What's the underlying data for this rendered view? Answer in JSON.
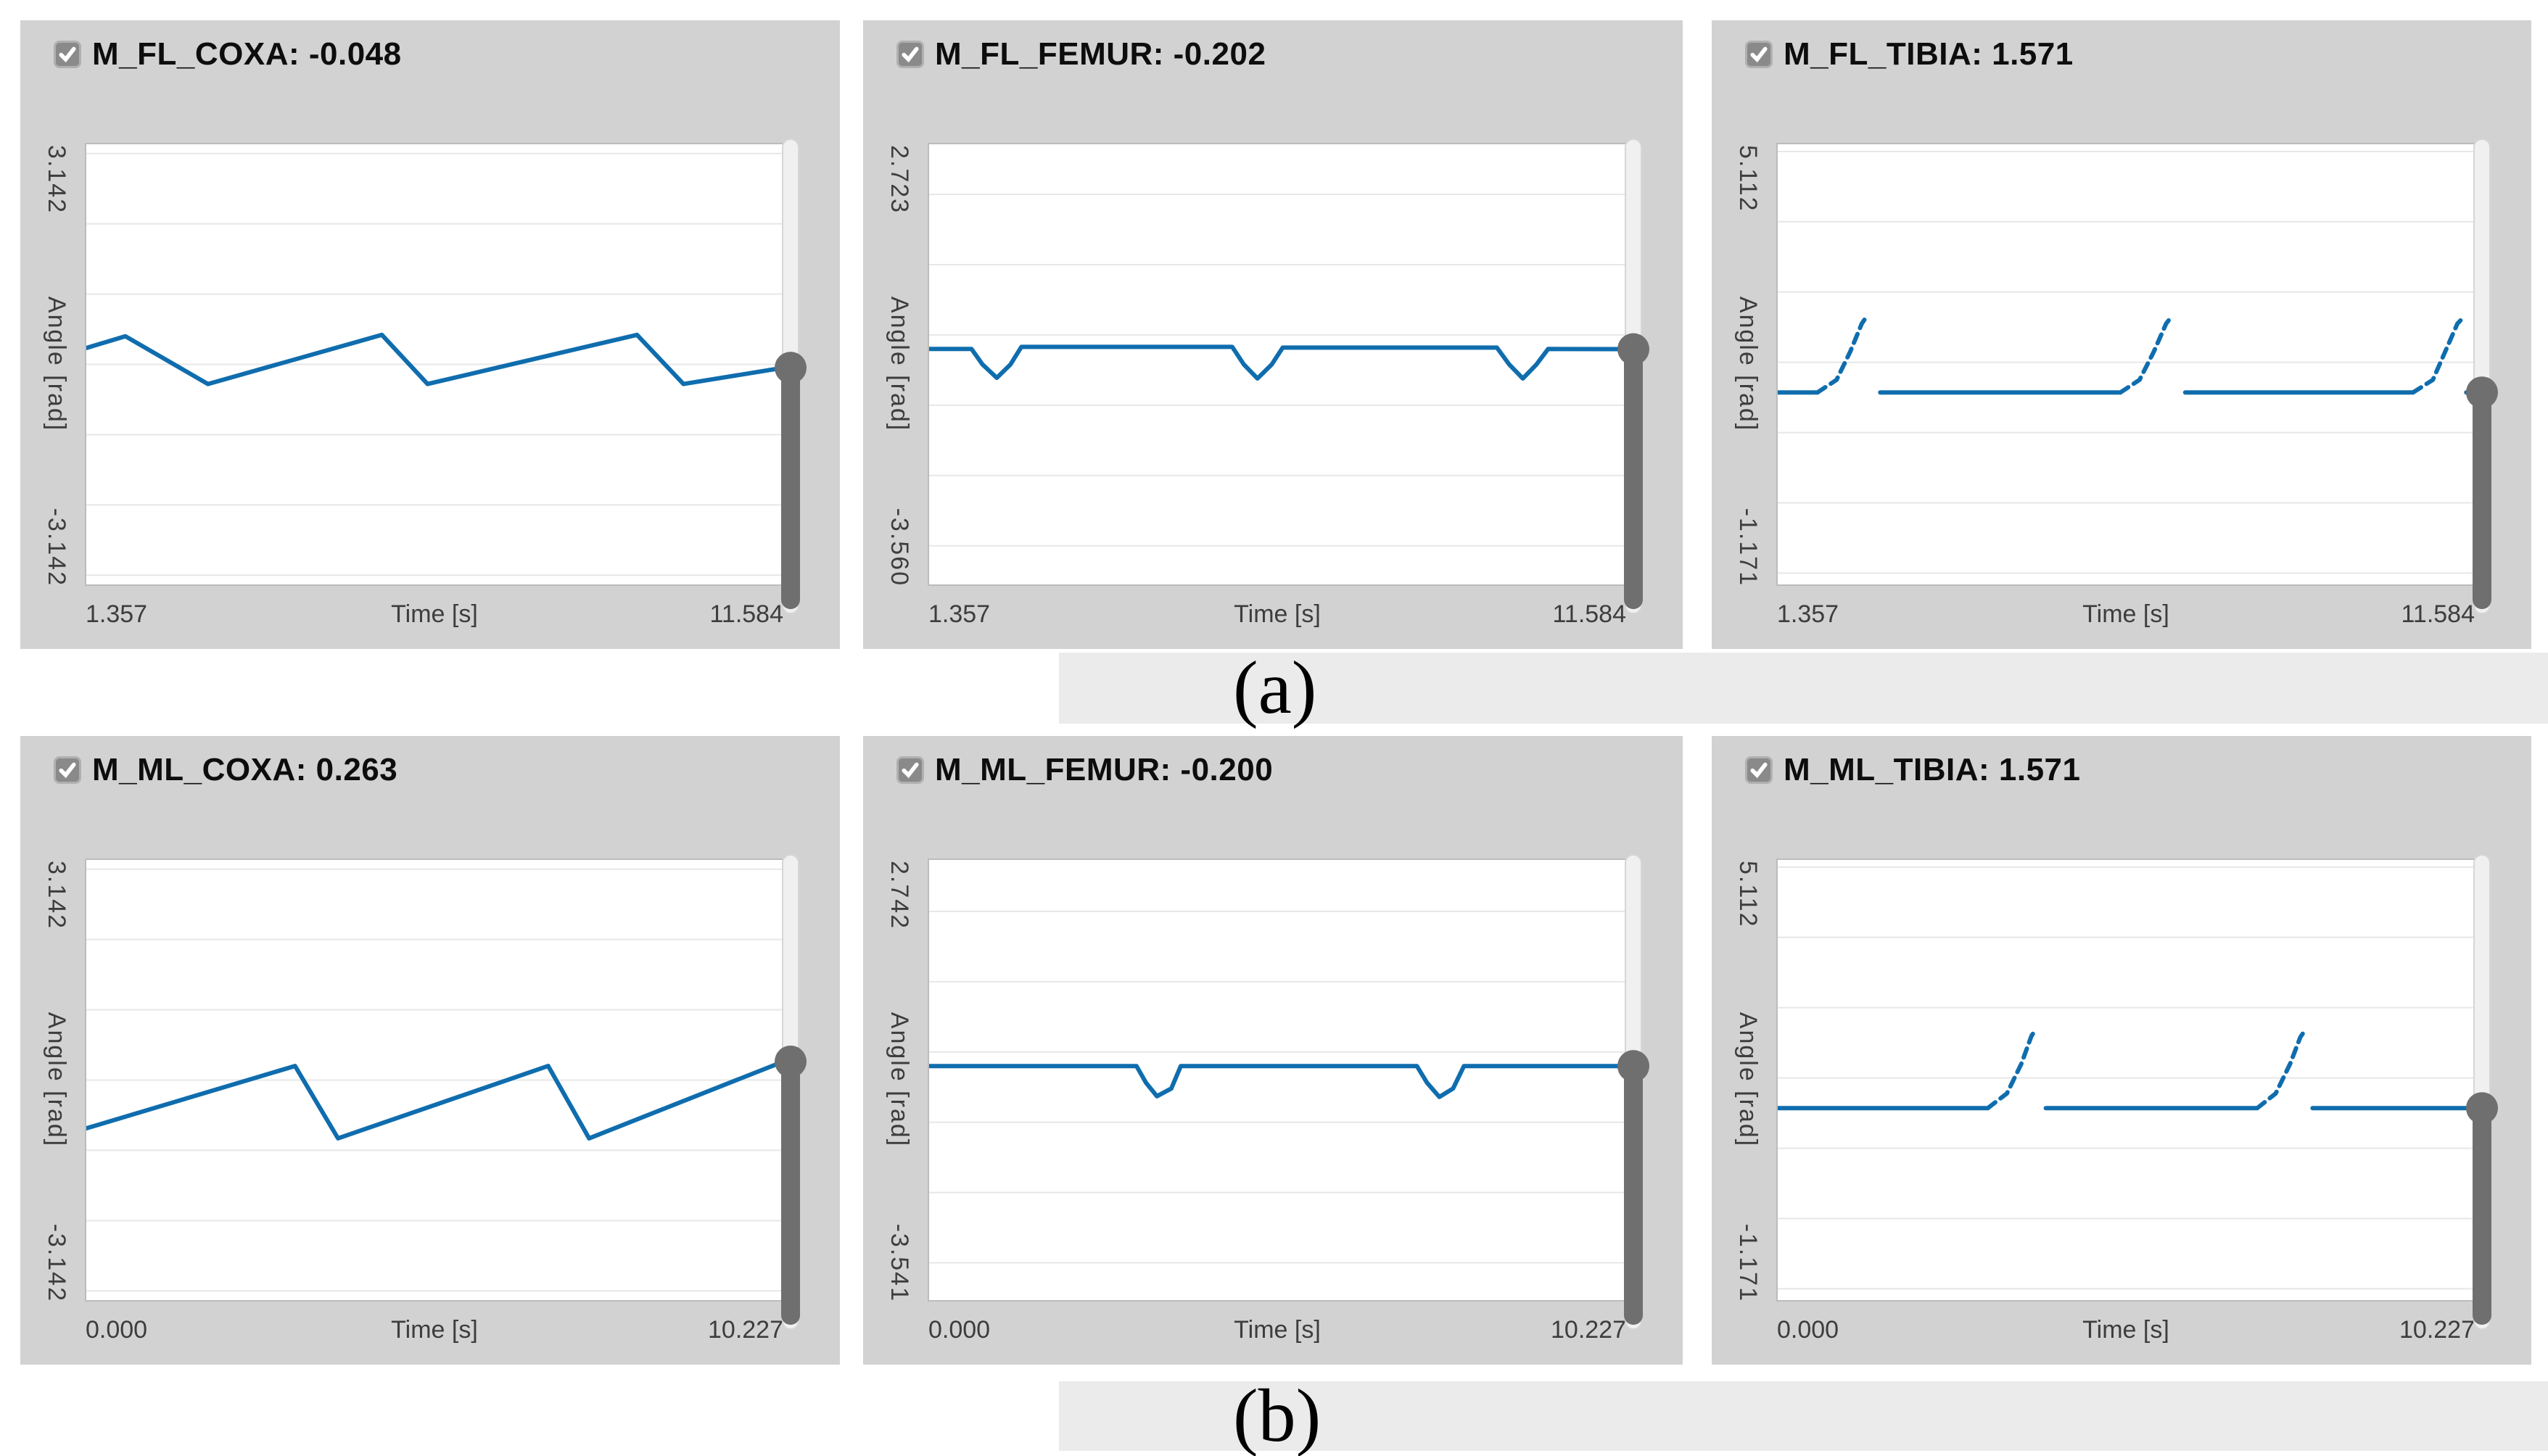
{
  "colors": {
    "page_bg": "#ffffff",
    "panel_bg": "#d2d2d2",
    "band_bg": "#ebebeb",
    "plot_bg": "#ffffff",
    "plot_border": "#bcbcbc",
    "grid": "#e7e7e7",
    "line": "#0f6dae",
    "slider_track": "#f0f0f0",
    "slider_track_border": "#d6d6d6",
    "slider_thumb": "#6f6f6f",
    "checkbox_bg": "#8a8a8a",
    "checkbox_border": "#b0b0b0",
    "checkbox_check": "#ffffff",
    "title_text": "#0d0d0d",
    "axis_text": "#3d3d3d"
  },
  "figure_labels": [
    {
      "text": "(a)"
    },
    {
      "text": "(b)"
    }
  ],
  "chart_data": [
    {
      "type": "line",
      "title": "M_FL_COXA: -0.048",
      "signal_name": "M_FL_COXA",
      "current_value": "-0.048",
      "checkbox_checked": true,
      "x_axis": {
        "label": "Time [s]",
        "min": 1.357,
        "max": 11.584,
        "min_label": "1.357",
        "max_label": "11.584"
      },
      "y_axis": {
        "label": "Angle [rad]",
        "min": -3.142,
        "max": 3.142,
        "min_label": "-3.142",
        "max_label": "3.142",
        "gridlines": [
          3,
          2,
          1,
          0,
          -1,
          -2,
          -3
        ]
      },
      "slider_value": -0.048,
      "segments": [
        {
          "dashed": false,
          "points": [
            [
              1.357,
              0.23
            ],
            [
              1.94,
              0.4
            ],
            [
              3.15,
              -0.28
            ],
            [
              5.7,
              0.42
            ],
            [
              6.37,
              -0.28
            ],
            [
              9.44,
              0.42
            ],
            [
              10.12,
              -0.28
            ],
            [
              11.584,
              -0.048
            ]
          ]
        }
      ]
    },
    {
      "type": "line",
      "title": "M_FL_FEMUR: -0.202",
      "signal_name": "M_FL_FEMUR",
      "current_value": "-0.202",
      "checkbox_checked": true,
      "x_axis": {
        "label": "Time [s]",
        "min": 1.357,
        "max": 11.584,
        "min_label": "1.357",
        "max_label": "11.584"
      },
      "y_axis": {
        "label": "Angle [rad]",
        "min": -3.56,
        "max": 2.723,
        "min_label": "-3.560",
        "max_label": "2.723",
        "gridlines": [
          2,
          1,
          0,
          -1,
          -2,
          -3
        ]
      },
      "slider_value": -0.202,
      "segments": [
        {
          "dashed": false,
          "points": [
            [
              1.357,
              -0.2
            ],
            [
              1.99,
              -0.2
            ],
            [
              2.15,
              -0.42
            ],
            [
              2.36,
              -0.61
            ],
            [
              2.56,
              -0.42
            ],
            [
              2.72,
              -0.17
            ],
            [
              5.81,
              -0.17
            ],
            [
              5.98,
              -0.42
            ],
            [
              6.18,
              -0.62
            ],
            [
              6.39,
              -0.42
            ],
            [
              6.55,
              -0.18
            ],
            [
              9.69,
              -0.18
            ],
            [
              9.87,
              -0.42
            ],
            [
              10.07,
              -0.62
            ],
            [
              10.27,
              -0.42
            ],
            [
              10.44,
              -0.2
            ],
            [
              11.584,
              -0.202
            ]
          ]
        }
      ]
    },
    {
      "type": "line",
      "title": "M_FL_TIBIA: 1.571",
      "signal_name": "M_FL_TIBIA",
      "current_value": "1.571",
      "checkbox_checked": true,
      "x_axis": {
        "label": "Time [s]",
        "min": 1.357,
        "max": 11.584,
        "min_label": "1.357",
        "max_label": "11.584"
      },
      "y_axis": {
        "label": "Angle [rad]",
        "min": -1.171,
        "max": 5.112,
        "min_label": "-1.171",
        "max_label": "5.112",
        "gridlines": [
          5,
          4,
          3,
          2,
          1,
          0,
          -1
        ]
      },
      "slider_value": 1.571,
      "segments": [
        {
          "dashed": false,
          "points": [
            [
              1.357,
              1.571
            ],
            [
              1.95,
              1.571
            ]
          ]
        },
        {
          "dashed": true,
          "points": [
            [
              1.95,
              1.571
            ],
            [
              2.23,
              1.75
            ],
            [
              2.43,
              2.15
            ],
            [
              2.6,
              2.55
            ],
            [
              2.67,
              2.65
            ]
          ]
        },
        {
          "dashed": false,
          "points": [
            [
              2.87,
              1.571
            ],
            [
              6.39,
              1.571
            ]
          ]
        },
        {
          "dashed": true,
          "points": [
            [
              6.39,
              1.571
            ],
            [
              6.67,
              1.75
            ],
            [
              6.88,
              2.15
            ],
            [
              7.06,
              2.55
            ],
            [
              7.14,
              2.65
            ]
          ]
        },
        {
          "dashed": false,
          "points": [
            [
              7.34,
              1.571
            ],
            [
              10.68,
              1.571
            ]
          ]
        },
        {
          "dashed": true,
          "points": [
            [
              10.68,
              1.571
            ],
            [
              10.97,
              1.75
            ],
            [
              11.15,
              2.15
            ],
            [
              11.33,
              2.55
            ],
            [
              11.4,
              2.62
            ]
          ]
        },
        {
          "dashed": false,
          "points": [
            [
              11.46,
              1.571
            ],
            [
              11.584,
              1.571
            ]
          ]
        }
      ]
    },
    {
      "type": "line",
      "title": "M_ML_COXA: 0.263",
      "signal_name": "M_ML_COXA",
      "current_value": "0.263",
      "checkbox_checked": true,
      "x_axis": {
        "label": "Time [s]",
        "min": 0.0,
        "max": 10.227,
        "min_label": "0.000",
        "max_label": "10.227"
      },
      "y_axis": {
        "label": "Angle [rad]",
        "min": -3.142,
        "max": 3.142,
        "min_label": "-3.142",
        "max_label": "3.142",
        "gridlines": [
          3,
          2,
          1,
          0,
          -1,
          -2,
          -3
        ]
      },
      "slider_value": 0.263,
      "segments": [
        {
          "dashed": false,
          "points": [
            [
              0,
              -0.69
            ],
            [
              3.07,
              0.2
            ],
            [
              3.7,
              -0.83
            ],
            [
              6.78,
              0.2
            ],
            [
              7.38,
              -0.83
            ],
            [
              10.227,
              0.263
            ]
          ]
        }
      ]
    },
    {
      "type": "line",
      "title": "M_ML_FEMUR: -0.200",
      "signal_name": "M_ML_FEMUR",
      "current_value": "-0.200",
      "checkbox_checked": true,
      "x_axis": {
        "label": "Time [s]",
        "min": 0.0,
        "max": 10.227,
        "min_label": "0.000",
        "max_label": "10.227"
      },
      "y_axis": {
        "label": "Angle [rad]",
        "min": -3.541,
        "max": 2.742,
        "min_label": "-3.541",
        "max_label": "2.742",
        "gridlines": [
          2,
          1,
          0,
          -1,
          -2,
          -3
        ]
      },
      "slider_value": -0.2,
      "segments": [
        {
          "dashed": false,
          "points": [
            [
              0,
              -0.2
            ],
            [
              3.05,
              -0.2
            ],
            [
              3.19,
              -0.44
            ],
            [
              3.35,
              -0.63
            ],
            [
              3.56,
              -0.52
            ],
            [
              3.7,
              -0.2
            ],
            [
              7.16,
              -0.2
            ],
            [
              7.31,
              -0.44
            ],
            [
              7.49,
              -0.64
            ],
            [
              7.69,
              -0.52
            ],
            [
              7.85,
              -0.2
            ],
            [
              10.227,
              -0.2
            ]
          ]
        }
      ]
    },
    {
      "type": "line",
      "title": "M_ML_TIBIA: 1.571",
      "signal_name": "M_ML_TIBIA",
      "current_value": "1.571",
      "checkbox_checked": true,
      "x_axis": {
        "label": "Time [s]",
        "min": 0.0,
        "max": 10.227,
        "min_label": "0.000",
        "max_label": "10.227"
      },
      "y_axis": {
        "label": "Angle [rad]",
        "min": -1.171,
        "max": 5.112,
        "min_label": "-1.171",
        "max_label": "5.112",
        "gridlines": [
          5,
          4,
          3,
          2,
          1,
          0,
          -1
        ]
      },
      "slider_value": 1.571,
      "segments": [
        {
          "dashed": false,
          "points": [
            [
              0,
              1.571
            ],
            [
              3.09,
              1.571
            ]
          ]
        },
        {
          "dashed": true,
          "points": [
            [
              3.09,
              1.571
            ],
            [
              3.37,
              1.78
            ],
            [
              3.58,
              2.2
            ],
            [
              3.73,
              2.6
            ],
            [
              3.78,
              2.67
            ]
          ]
        },
        {
          "dashed": false,
          "points": [
            [
              3.94,
              1.571
            ],
            [
              7.04,
              1.571
            ]
          ]
        },
        {
          "dashed": true,
          "points": [
            [
              7.04,
              1.571
            ],
            [
              7.31,
              1.78
            ],
            [
              7.52,
              2.2
            ],
            [
              7.67,
              2.58
            ],
            [
              7.72,
              2.65
            ]
          ]
        },
        {
          "dashed": false,
          "points": [
            [
              7.85,
              1.571
            ],
            [
              10.227,
              1.571
            ]
          ]
        }
      ]
    }
  ]
}
